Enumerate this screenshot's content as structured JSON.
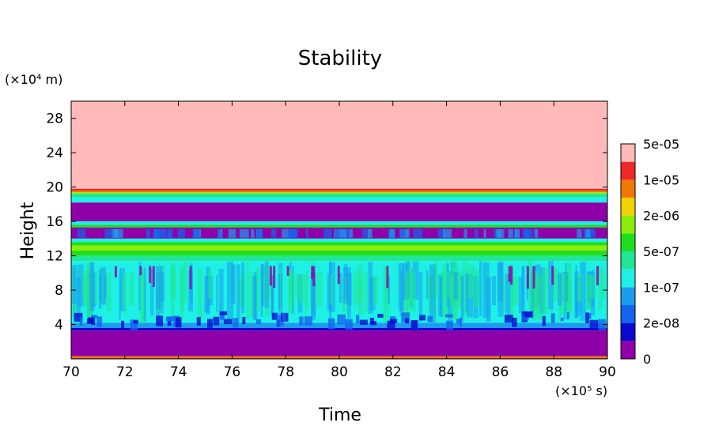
{
  "chart_data": {
    "type": "heatmap",
    "title": "Stability",
    "xlabel": "Time",
    "ylabel": "Height",
    "x_unit": "(×10⁵ s)",
    "y_unit": "(×10⁴ m)",
    "xlim": [
      70,
      90
    ],
    "ylim": [
      0,
      30
    ],
    "x_ticks": [
      "70",
      "72",
      "74",
      "76",
      "78",
      "80",
      "82",
      "84",
      "86",
      "88",
      "90"
    ],
    "y_ticks": [
      "4",
      "8",
      "12",
      "16",
      "20",
      "24",
      "28"
    ],
    "colorbar": {
      "labels": [
        "0",
        "2e-08",
        "1e-07",
        "5e-07",
        "2e-06",
        "1e-05",
        "5e-05"
      ],
      "colors": [
        "#8f00a8",
        "#0a0ad0",
        "#1464f0",
        "#1a9cf0",
        "#1ef0e6",
        "#20e696",
        "#1ede1e",
        "#8cec0a",
        "#f0d200",
        "#f07800",
        "#f02828",
        "#ffb9b9"
      ]
    },
    "bands": [
      {
        "from": 19.8,
        "to": 30,
        "level": 11
      },
      {
        "from": 19.6,
        "to": 19.8,
        "level": 10
      },
      {
        "from": 19.4,
        "to": 19.6,
        "level": 9
      },
      {
        "from": 19.2,
        "to": 19.4,
        "level": 7
      },
      {
        "from": 18.8,
        "to": 19.2,
        "level": 5
      },
      {
        "from": 18.2,
        "to": 18.8,
        "level": 4
      },
      {
        "from": 16.0,
        "to": 18.2,
        "level": 0
      },
      {
        "from": 15.6,
        "to": 16.0,
        "level": 4
      },
      {
        "from": 15.3,
        "to": 15.6,
        "level": 6
      },
      {
        "from": 14.0,
        "to": 15.3,
        "level": 0
      },
      {
        "from": 13.6,
        "to": 14.0,
        "level": 4
      },
      {
        "from": 13.2,
        "to": 13.6,
        "level": 6
      },
      {
        "from": 12.6,
        "to": 13.2,
        "level": 7
      },
      {
        "from": 12.0,
        "to": 12.6,
        "level": 6
      },
      {
        "from": 11.4,
        "to": 12.0,
        "level": 5
      },
      {
        "from": 4.2,
        "to": 11.4,
        "level": 4
      },
      {
        "from": 3.6,
        "to": 4.2,
        "level": 3
      },
      {
        "from": 3.3,
        "to": 3.6,
        "level": 1
      },
      {
        "from": 0.3,
        "to": 3.3,
        "level": 0
      },
      {
        "from": 0.1,
        "to": 0.3,
        "level": 9
      },
      {
        "from": 0.0,
        "to": 0.1,
        "level": 10
      }
    ]
  }
}
